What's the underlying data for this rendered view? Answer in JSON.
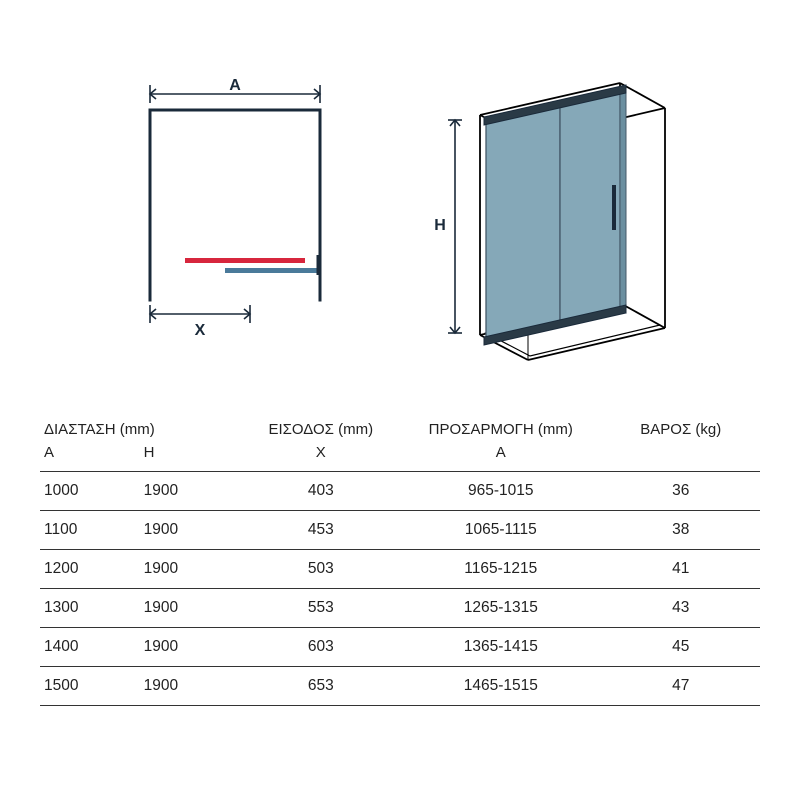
{
  "diagram": {
    "plan": {
      "label_A": "A",
      "label_X": "X",
      "frame_stroke": "#1a2a3a",
      "frame_stroke_width": 3,
      "dim_stroke": "#1a2a3a",
      "dim_stroke_width": 1.6,
      "red_bar_color": "#d7263d",
      "blue_bar_color": "#4a7a9a",
      "font_size": 16,
      "font_weight": "bold",
      "font_color": "#1a2a3a"
    },
    "iso": {
      "label_H": "H",
      "frame_stroke": "#000000",
      "frame_stroke_width": 1.8,
      "panel_fill": "#85a8b8",
      "panel_stroke": "#445868",
      "dim_stroke": "#1a2a3a",
      "font_size": 16,
      "font_weight": "bold",
      "font_color": "#1a2a3a"
    }
  },
  "table": {
    "groups": {
      "dimension": "ΔΙΑΣΤΑΣΗ (mm)",
      "entry": "ΕΙΣΟΔΟΣ (mm)",
      "adjustment": "ΠΡΟΣΑΡΜΟΓΗ (mm)",
      "weight": "ΒΑΡΟΣ (kg)"
    },
    "subheaders": {
      "a": "A",
      "h": "H",
      "x": "X",
      "adj": "A",
      "w": ""
    },
    "rows": [
      {
        "a": "1000",
        "h": "1900",
        "x": "403",
        "adj": "965-1015",
        "w": "36"
      },
      {
        "a": "1100",
        "h": "1900",
        "x": "453",
        "adj": "1065-1115",
        "w": "38"
      },
      {
        "a": "1200",
        "h": "1900",
        "x": "503",
        "adj": "1165-1215",
        "w": "41"
      },
      {
        "a": "1300",
        "h": "1900",
        "x": "553",
        "adj": "1265-1315",
        "w": "43"
      },
      {
        "a": "1400",
        "h": "1900",
        "x": "603",
        "adj": "1365-1415",
        "w": "45"
      },
      {
        "a": "1500",
        "h": "1900",
        "x": "653",
        "adj": "1465-1515",
        "w": "47"
      }
    ]
  }
}
